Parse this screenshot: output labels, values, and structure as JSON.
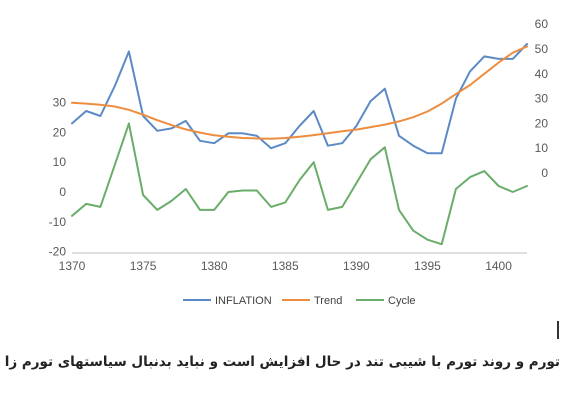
{
  "caption": "تورم و روند تورم با شیبی تند در حال افزایش است و نباید بدنبال سیاستهای تورم زا بود",
  "chart_data": {
    "type": "line",
    "title": "",
    "xlabel": "",
    "x": [
      1370,
      1371,
      1372,
      1373,
      1374,
      1375,
      1376,
      1377,
      1378,
      1379,
      1380,
      1381,
      1382,
      1383,
      1384,
      1385,
      1386,
      1387,
      1388,
      1389,
      1390,
      1391,
      1392,
      1393,
      1394,
      1395,
      1396,
      1397,
      1398,
      1399,
      1400,
      1401,
      1402
    ],
    "x_ticks": [
      "1370",
      "1375",
      "1380",
      "1385",
      "1390",
      "1395",
      "1400"
    ],
    "x_tick_values": [
      1370,
      1375,
      1380,
      1385,
      1390,
      1395,
      1400
    ],
    "xlim": [
      1370,
      1402
    ],
    "left_axis": {
      "ylim": [
        -20,
        30
      ],
      "ticks": [
        "-20",
        "-10",
        "0",
        "10",
        "20",
        "30"
      ],
      "tick_values": [
        -20,
        -10,
        0,
        10,
        20,
        30
      ]
    },
    "right_axis": {
      "ylim": [
        -20,
        60
      ],
      "ticks": [
        "0",
        "10",
        "20",
        "30",
        "40",
        "50",
        "60"
      ],
      "tick_values": [
        0,
        10,
        20,
        30,
        40,
        50,
        60
      ]
    },
    "grid": false,
    "legend_position": "bottom",
    "series": [
      {
        "name": "INFLATION",
        "axis": "right",
        "color": "#5b8ac6",
        "values": [
          20,
          25,
          23,
          35,
          49,
          23,
          17,
          18,
          21,
          13,
          12,
          16,
          16,
          15,
          10,
          12,
          19,
          25,
          11,
          12,
          19,
          29,
          34,
          15,
          11,
          8,
          8,
          30,
          41,
          47,
          46,
          46,
          52
        ]
      },
      {
        "name": "Trend",
        "axis": "right",
        "color": "#ee8d3e",
        "values": [
          28.3,
          28,
          27.5,
          26.8,
          25.5,
          23.5,
          21.3,
          19.3,
          17.6,
          16.3,
          15.2,
          14.6,
          14.1,
          13.9,
          13.8,
          14.1,
          14.6,
          15.3,
          16,
          16.8,
          17.5,
          18.5,
          19.5,
          20.8,
          22.5,
          24.8,
          28,
          31.8,
          35.5,
          40,
          44.5,
          48.5,
          51
        ]
      },
      {
        "name": "Cycle",
        "axis": "left",
        "color": "#6aad6a",
        "values": [
          -8,
          -4,
          -5,
          9,
          23,
          -1,
          -6,
          -3,
          1,
          -6,
          -6,
          0,
          0.5,
          0.5,
          -5,
          -3.5,
          4,
          10,
          -6,
          -5,
          3,
          11,
          15,
          -6,
          -13,
          -16,
          -17.5,
          1,
          5,
          7,
          2,
          0,
          2
        ]
      }
    ]
  }
}
